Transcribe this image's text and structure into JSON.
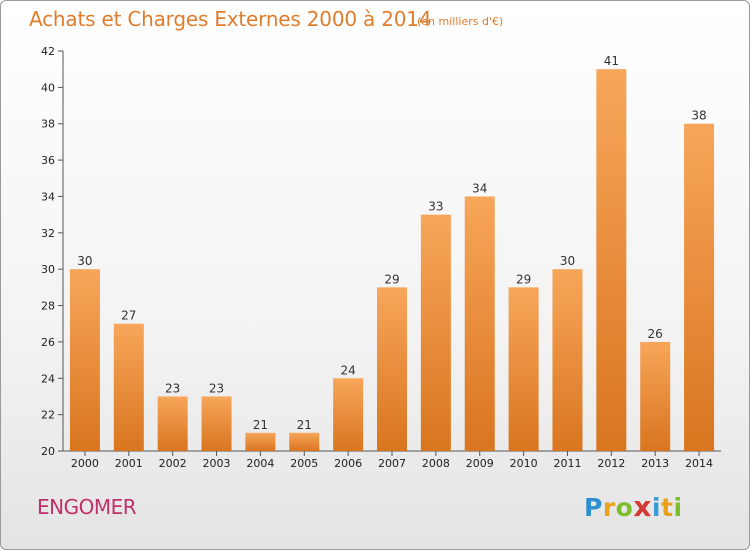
{
  "header": {
    "title": "Achats et Charges Externes 2000 à 2014",
    "subtitle": "(en milliers d'€)"
  },
  "footer": {
    "commune": "ENGOMER",
    "logo": [
      "P",
      "r",
      "o",
      "x",
      "i",
      "t",
      "i"
    ]
  },
  "colors": {
    "title": "#e07d2c",
    "commune": "#c0306a",
    "bar_top": "#f7a65a",
    "bar_bottom": "#d9751f"
  },
  "chart_data": {
    "type": "bar",
    "categories": [
      "2000",
      "2001",
      "2002",
      "2003",
      "2004",
      "2005",
      "2006",
      "2007",
      "2008",
      "2009",
      "2010",
      "2011",
      "2012",
      "2013",
      "2014"
    ],
    "values": [
      30,
      27,
      23,
      23,
      21,
      21,
      24,
      29,
      33,
      34,
      29,
      30,
      41,
      26,
      38
    ],
    "title": "Achats et Charges Externes 2000 à 2014",
    "subtitle": "(en milliers d'€)",
    "xlabel": "",
    "ylabel": "",
    "ylim": [
      20,
      42
    ],
    "yticks": [
      20,
      22,
      24,
      26,
      28,
      30,
      32,
      34,
      36,
      38,
      40,
      42
    ],
    "grid": false,
    "data_labels": true
  }
}
